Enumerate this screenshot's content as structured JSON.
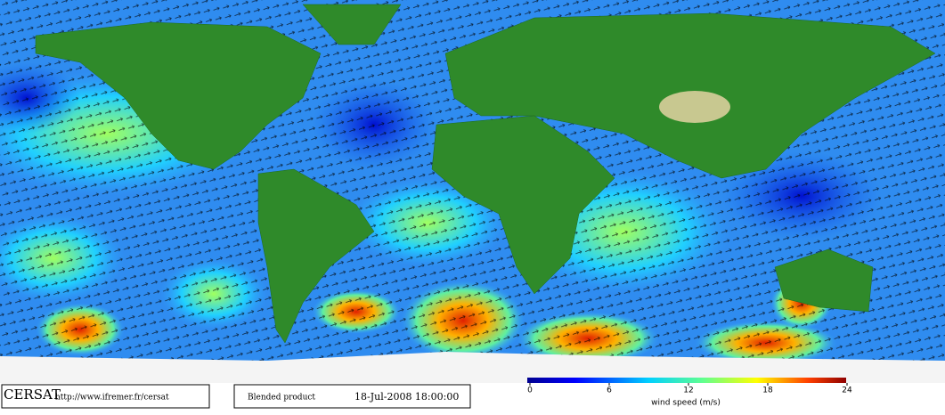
{
  "footer": {
    "logo": "CERSAT",
    "url": "http://www.ifremer.fr/cersat",
    "product": "Blended product",
    "datetime": "18-Jul-2008 18:00:00"
  },
  "colorbar": {
    "title": "wind speed (m/s)",
    "lim": [
      0,
      24
    ],
    "ticks": [
      0,
      6,
      12,
      18,
      24
    ]
  }
}
